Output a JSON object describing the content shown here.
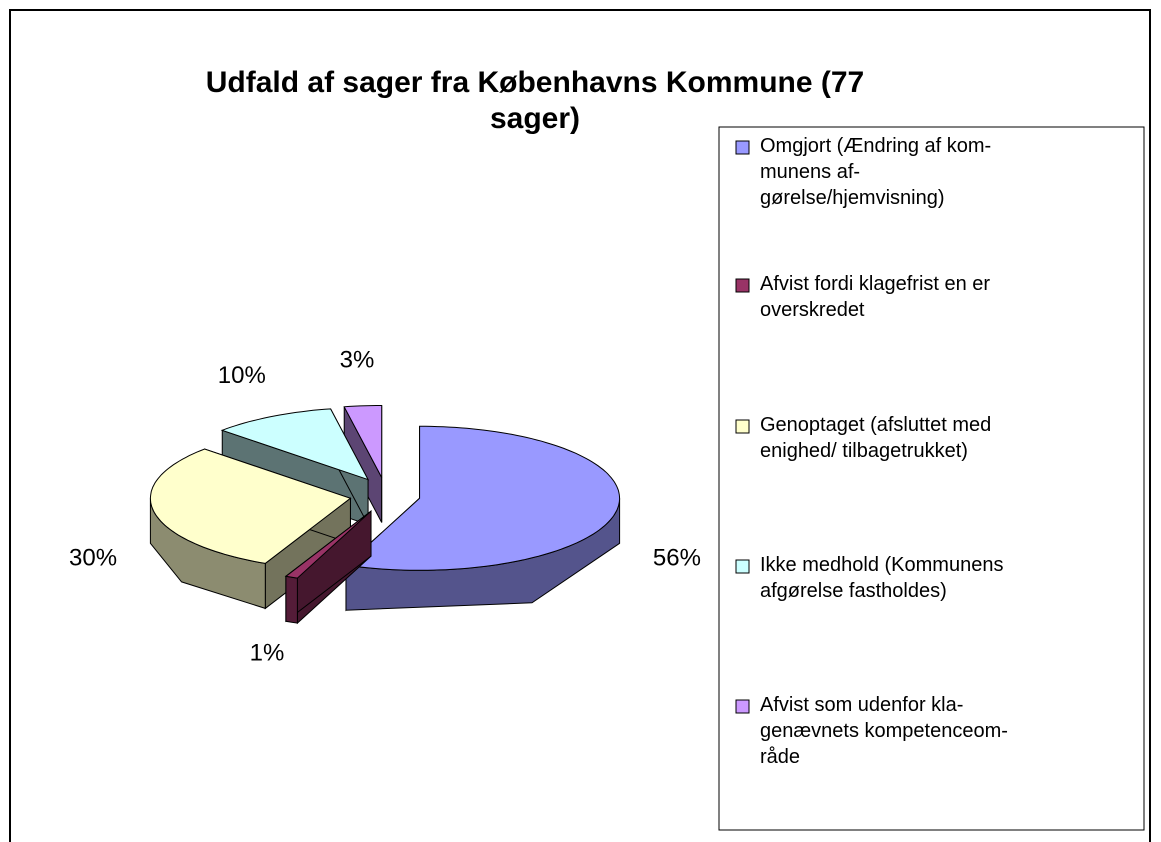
{
  "chart_data": {
    "type": "pie",
    "title": "Udfald af sager fra Københavns Kommune (77\nsager)",
    "categories": [
      "Omgjort (Ændring af kom-\nmunens af-\ngørelse/hjemvisning)",
      "Afvist fordi klagefrist en er\noverskredet",
      "Genoptaget (afsluttet med\nenighed/ tilbagetrukket)",
      "Ikke medhold (Kommunens\nafgørelse fastholdes)",
      "Afvist som udenfor kla-\ngenævnets kompetenceom-\nråde"
    ],
    "values": [
      56,
      1,
      30,
      10,
      3
    ],
    "value_labels": [
      "56%",
      "1%",
      "30%",
      "10%",
      "3%"
    ],
    "colors": [
      "#9999ff",
      "#993366",
      "#ffffcc",
      "#ccffff",
      "#cc99ff"
    ],
    "legend": "right"
  }
}
